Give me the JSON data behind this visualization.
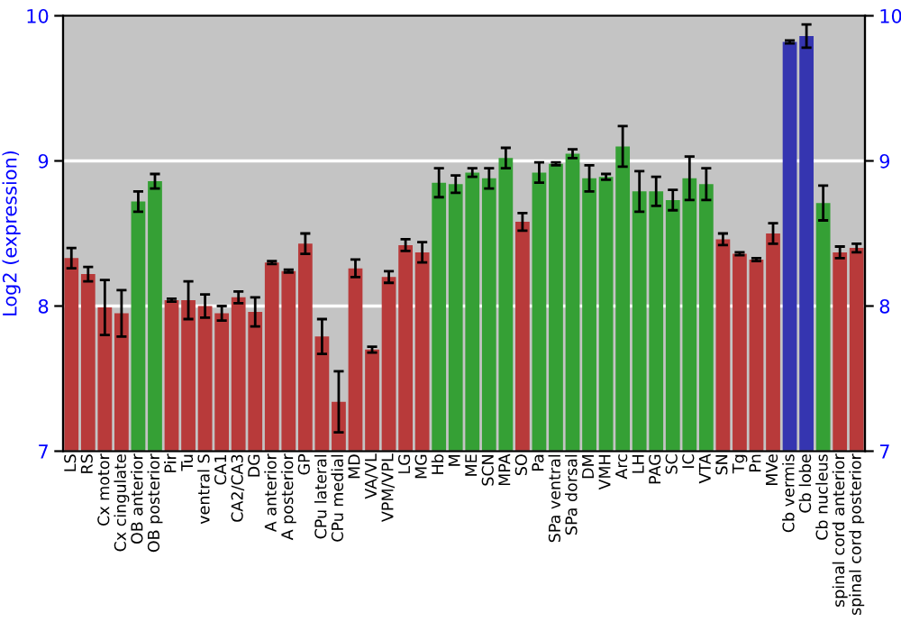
{
  "chart_data": {
    "type": "bar",
    "ylabel": "Log2 (expression)",
    "categories": [
      "LS",
      "RS",
      "Cx motor",
      "Cx cingulate",
      "OB anterior",
      "OB posterior",
      "Pir",
      "Tu",
      "ventral S",
      "CA1",
      "CA2/CA3",
      "DG",
      "A anterior",
      "A posterior",
      "GP",
      "CPu lateral",
      "CPu medial",
      "MD",
      "VA/VL",
      "VPM/VPL",
      "LG",
      "MG",
      "Hb",
      "M",
      "ME",
      "SCN",
      "MPA",
      "SO",
      "Pa",
      "SPa ventral",
      "SPa dorsal",
      "DM",
      "VMH",
      "Arc",
      "LH",
      "PAG",
      "SC",
      "IC",
      "VTA",
      "SN",
      "Tg",
      "Pn",
      "MVe",
      "Cb vermis",
      "Cb lobe",
      "Cb nucleus",
      "spinal cord anterior",
      "spinal cord posterior"
    ],
    "values": [
      8.33,
      8.22,
      7.99,
      7.95,
      8.72,
      8.86,
      8.04,
      8.04,
      8.0,
      7.95,
      8.06,
      7.96,
      8.3,
      8.24,
      8.43,
      7.79,
      7.34,
      8.26,
      7.7,
      8.2,
      8.42,
      8.37,
      8.85,
      8.84,
      8.92,
      8.88,
      9.02,
      8.58,
      8.92,
      8.98,
      9.05,
      8.88,
      8.89,
      9.1,
      8.79,
      8.79,
      8.73,
      8.88,
      8.84,
      8.46,
      8.36,
      8.32,
      8.5,
      9.82,
      9.86,
      8.71,
      8.37,
      8.4
    ],
    "errors": [
      0.07,
      0.05,
      0.19,
      0.16,
      0.07,
      0.05,
      0.01,
      0.13,
      0.08,
      0.05,
      0.04,
      0.1,
      0.01,
      0.01,
      0.07,
      0.12,
      0.21,
      0.06,
      0.02,
      0.04,
      0.04,
      0.07,
      0.1,
      0.06,
      0.03,
      0.07,
      0.07,
      0.06,
      0.07,
      0.01,
      0.03,
      0.09,
      0.02,
      0.14,
      0.14,
      0.1,
      0.07,
      0.15,
      0.11,
      0.04,
      0.01,
      0.01,
      0.07,
      0.01,
      0.08,
      0.12,
      0.04,
      0.03
    ],
    "colors": [
      "#b83a3a",
      "#b83a3a",
      "#b83a3a",
      "#b83a3a",
      "#35a035",
      "#35a035",
      "#b83a3a",
      "#b83a3a",
      "#b83a3a",
      "#b83a3a",
      "#b83a3a",
      "#b83a3a",
      "#b83a3a",
      "#b83a3a",
      "#b83a3a",
      "#b83a3a",
      "#b83a3a",
      "#b83a3a",
      "#b83a3a",
      "#b83a3a",
      "#b83a3a",
      "#b83a3a",
      "#35a035",
      "#35a035",
      "#35a035",
      "#35a035",
      "#35a035",
      "#b83a3a",
      "#35a035",
      "#35a035",
      "#35a035",
      "#35a035",
      "#35a035",
      "#35a035",
      "#35a035",
      "#35a035",
      "#35a035",
      "#35a035",
      "#35a035",
      "#b83a3a",
      "#b83a3a",
      "#b83a3a",
      "#b83a3a",
      "#3535b0",
      "#3535b0",
      "#35a035",
      "#b83a3a",
      "#b83a3a"
    ],
    "ylim": [
      7,
      10
    ],
    "yticks": [
      7,
      8,
      9,
      10
    ],
    "y2lim": [
      7,
      10
    ],
    "y2ticks": [
      7,
      8,
      9,
      10
    ],
    "grid": "y"
  }
}
